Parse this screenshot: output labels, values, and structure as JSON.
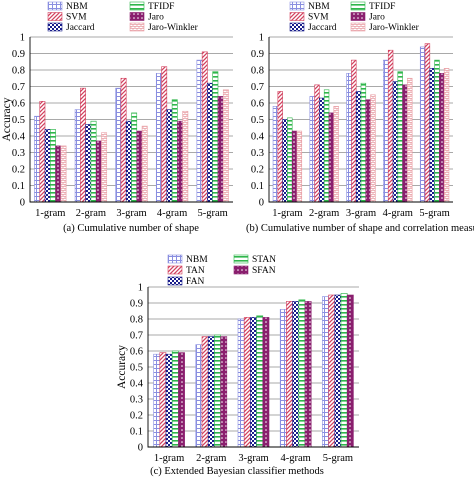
{
  "colors": {
    "NBM": "#8a8fe0",
    "SVM": "#d2425f",
    "Jaccard": "#1a1f8c",
    "TFIDF": "#2fb64b",
    "Jaro": "#8a1f6e",
    "Jaro-Winkler": "#e9a0a6",
    "TAN": "#d2425f",
    "FAN": "#1a1f8c",
    "STAN": "#2fb64b",
    "SFAN": "#8a1f6e"
  },
  "patterns": {
    "NBM": "grid",
    "SVM": "diag",
    "Jaccard": "check",
    "TFIDF": "hlines",
    "Jaro": "dots",
    "Jaro-Winkler": "bricks",
    "TAN": "diag",
    "FAN": "check",
    "STAN": "hlines",
    "SFAN": "dots"
  },
  "chart_data": [
    {
      "type": "bar",
      "caption": "(a) Cumulative number of shape",
      "ylabel": "Accuracy",
      "ylim": [
        0,
        1
      ],
      "yticks": [
        "0",
        "0.1",
        "0.2",
        "0.3",
        "0.4",
        "0.5",
        "0.6",
        "0.7",
        "0.8",
        "0.9",
        "1"
      ],
      "grid": true,
      "categories": [
        "1-gram",
        "2-gram",
        "3-gram",
        "4-gram",
        "5-gram"
      ],
      "legend_columns": [
        [
          "NBM",
          "SVM",
          "Jaccard"
        ],
        [
          "TFIDF",
          "Jaro",
          "Jaro-Winkler"
        ]
      ],
      "series": [
        {
          "name": "NBM",
          "values": [
            0.52,
            0.56,
            0.69,
            0.78,
            0.86
          ]
        },
        {
          "name": "SVM",
          "values": [
            0.61,
            0.69,
            0.75,
            0.82,
            0.91
          ]
        },
        {
          "name": "Jaccard",
          "values": [
            0.44,
            0.47,
            0.49,
            0.56,
            0.72
          ]
        },
        {
          "name": "TFIDF",
          "values": [
            0.44,
            0.49,
            0.54,
            0.62,
            0.79
          ]
        },
        {
          "name": "Jaro",
          "values": [
            0.34,
            0.37,
            0.43,
            0.49,
            0.64
          ]
        },
        {
          "name": "Jaro-Winkler",
          "values": [
            0.34,
            0.42,
            0.46,
            0.55,
            0.68
          ]
        }
      ]
    },
    {
      "type": "bar",
      "caption": "(b) Cumulative number of shape and correlation measure",
      "ylabel": "",
      "ylim": [
        0,
        1
      ],
      "yticks": [
        "0",
        "0.1",
        "0.2",
        "0.3",
        "0.4",
        "0.5",
        "0.6",
        "0.7",
        "0.8",
        "0.9",
        "1"
      ],
      "grid": true,
      "categories": [
        "1-gram",
        "2-gram",
        "3-gram",
        "4-gram",
        "5-gram"
      ],
      "legend_columns": [
        [
          "NBM",
          "SVM",
          "Jaccard"
        ],
        [
          "TFIDF",
          "Jaro",
          "Jaro-Winkler"
        ]
      ],
      "series": [
        {
          "name": "NBM",
          "values": [
            0.58,
            0.64,
            0.78,
            0.86,
            0.94
          ]
        },
        {
          "name": "SVM",
          "values": [
            0.67,
            0.71,
            0.86,
            0.92,
            0.96
          ]
        },
        {
          "name": "Jaccard",
          "values": [
            0.5,
            0.63,
            0.67,
            0.73,
            0.81
          ]
        },
        {
          "name": "TFIDF",
          "values": [
            0.51,
            0.68,
            0.72,
            0.79,
            0.86
          ]
        },
        {
          "name": "Jaro",
          "values": [
            0.43,
            0.54,
            0.62,
            0.71,
            0.78
          ]
        },
        {
          "name": "Jaro-Winkler",
          "values": [
            0.43,
            0.58,
            0.65,
            0.75,
            0.81
          ]
        }
      ]
    },
    {
      "type": "bar",
      "caption": "(c) Extended Bayesian classifier methods",
      "ylabel": "Accuracy",
      "ylim": [
        0,
        1
      ],
      "yticks": [
        "0",
        "0.1",
        "0.2",
        "0.3",
        "0.4",
        "0.5",
        "0.6",
        "0.7",
        "0.8",
        "0.9",
        "1"
      ],
      "grid": true,
      "categories": [
        "1-gram",
        "2-gram",
        "3-gram",
        "4-gram",
        "5-gram"
      ],
      "legend_columns": [
        [
          "NBM",
          "TAN",
          "FAN"
        ],
        [
          "STAN",
          "SFAN"
        ]
      ],
      "series": [
        {
          "name": "NBM",
          "values": [
            0.58,
            0.64,
            0.8,
            0.86,
            0.94
          ]
        },
        {
          "name": "TAN",
          "values": [
            0.59,
            0.69,
            0.81,
            0.91,
            0.95
          ]
        },
        {
          "name": "FAN",
          "values": [
            0.58,
            0.69,
            0.81,
            0.91,
            0.95
          ]
        },
        {
          "name": "STAN",
          "values": [
            0.6,
            0.7,
            0.82,
            0.92,
            0.96
          ]
        },
        {
          "name": "SFAN",
          "values": [
            0.59,
            0.69,
            0.81,
            0.91,
            0.95
          ]
        }
      ]
    }
  ]
}
